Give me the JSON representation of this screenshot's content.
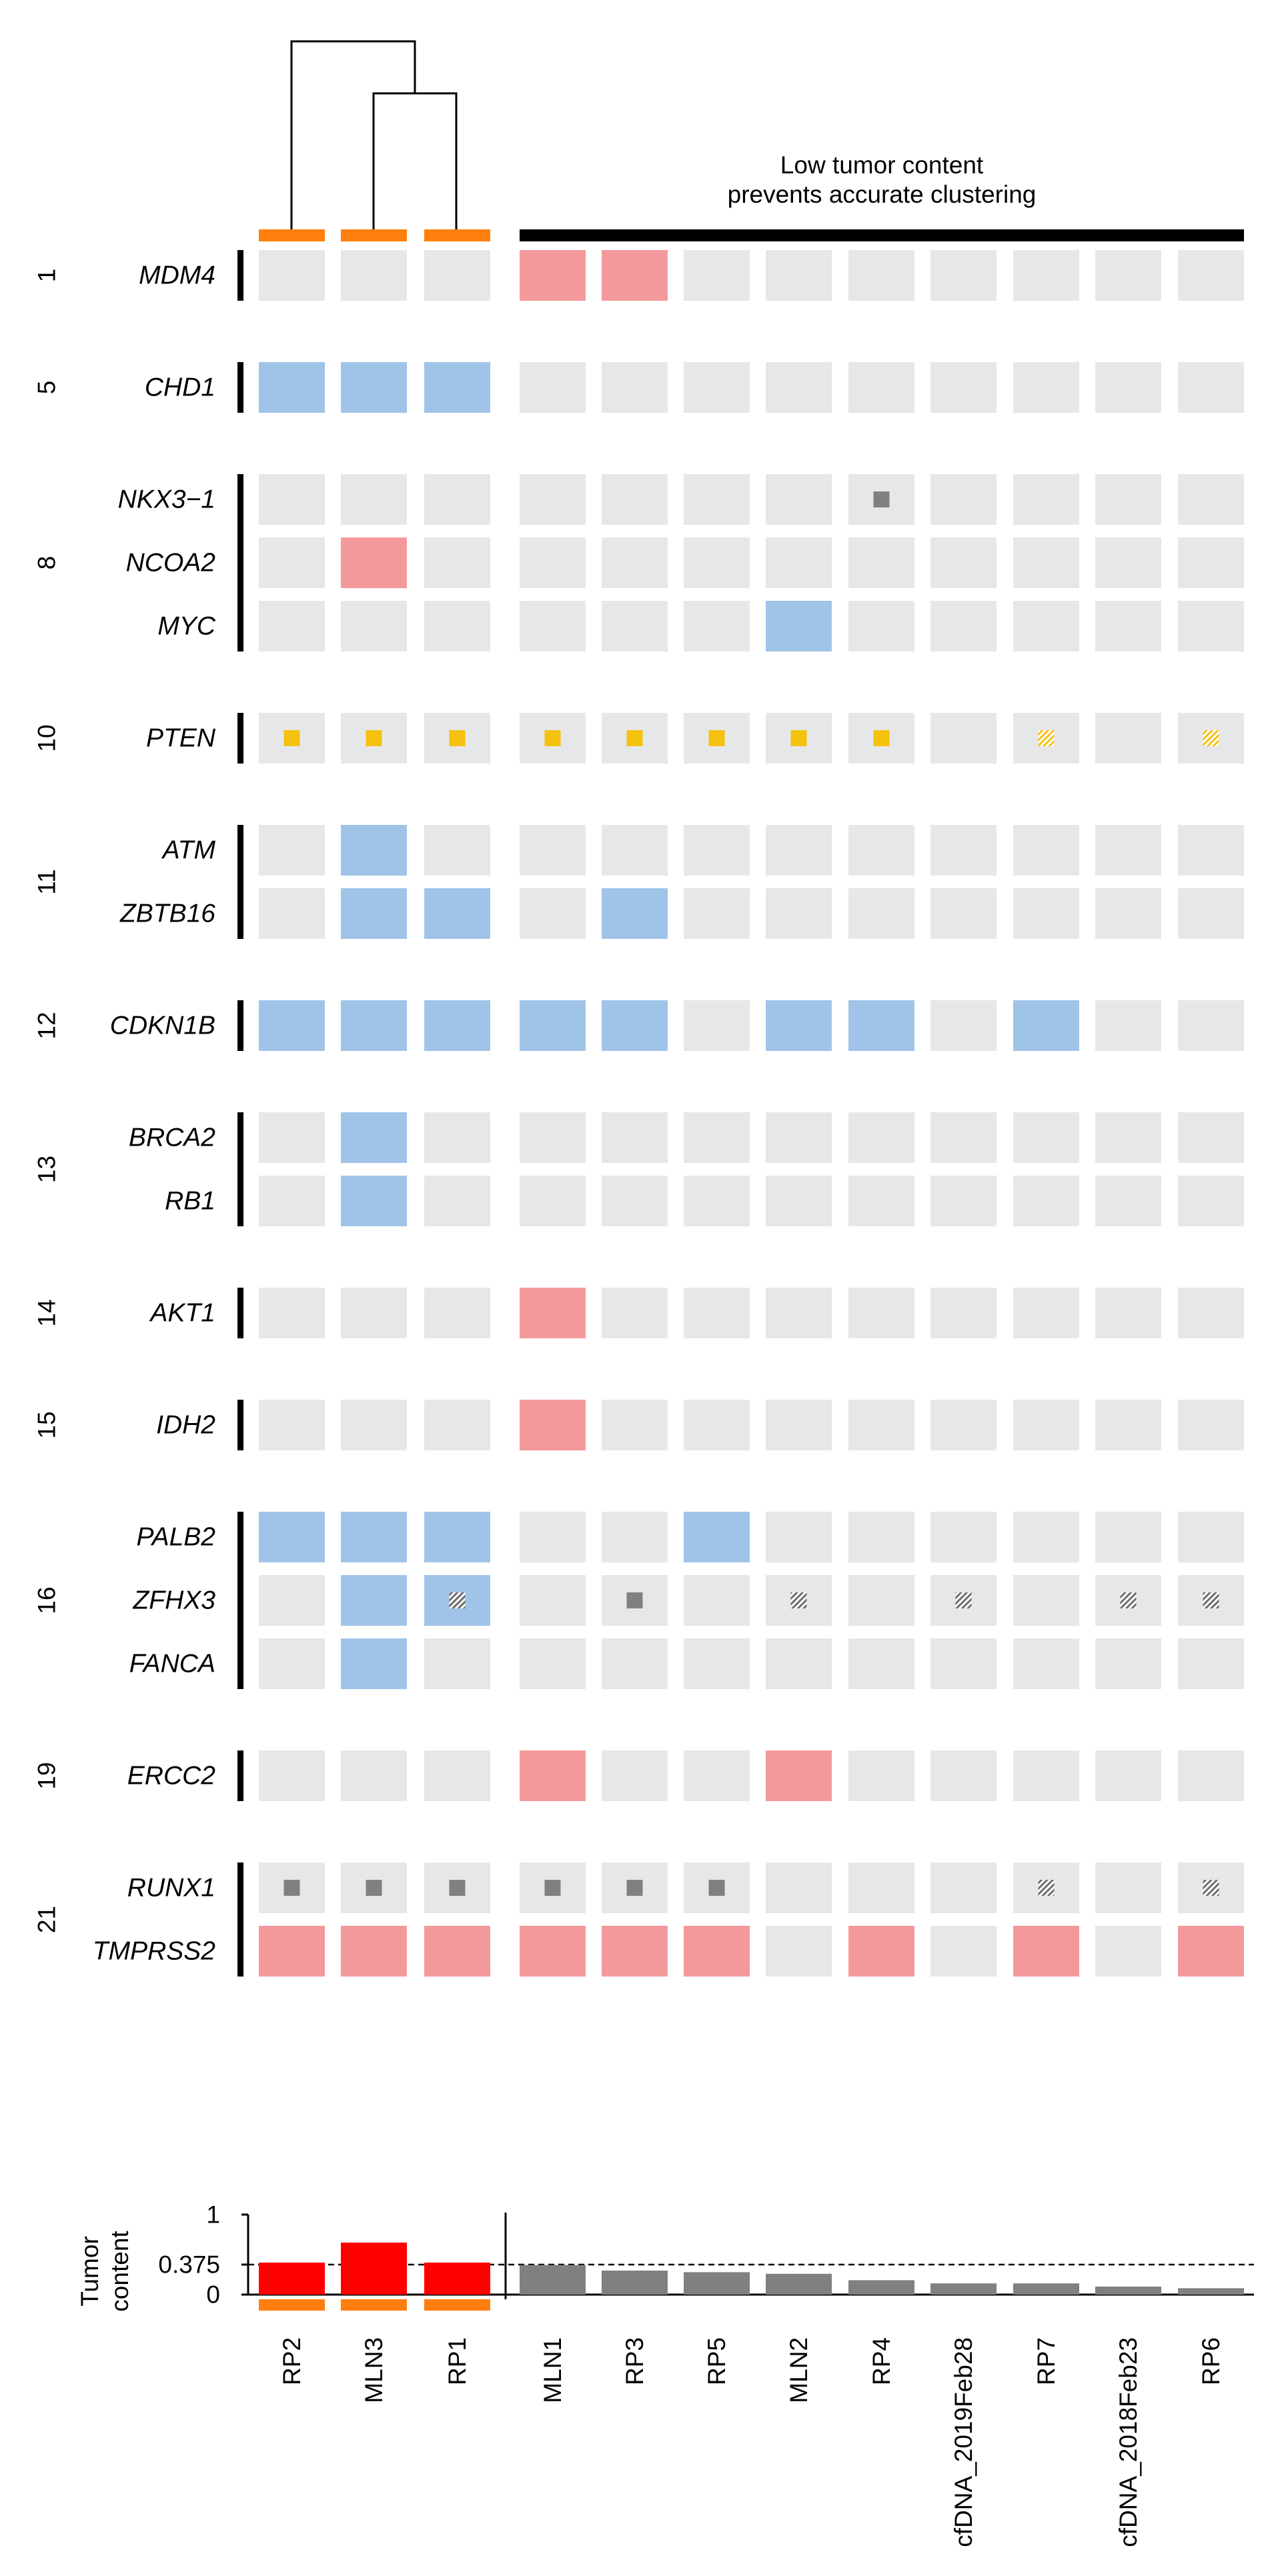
{
  "annotation": {
    "line1": "Low tumor content",
    "line2": "prevents accurate clustering"
  },
  "samples": [
    "RP2",
    "MLN3",
    "RP1",
    "MLN1",
    "RP3",
    "RP5",
    "MLN2",
    "RP4",
    "cfDNA_2019Feb28",
    "RP7",
    "cfDNA_2018Feb23",
    "RP6"
  ],
  "clustered_count": 3,
  "legend_codes": {
    "N": "neutral",
    "A": "amplification",
    "D": "deletion",
    "Y": "point mutation (yellow square)",
    "G": "point mutation (grey square)",
    "H": "hatched grey mark",
    "V": "hatched yellow mark",
    "B": "deletion with hatched grey mark"
  },
  "colors": {
    "neutral": "#e6e7e8",
    "amplification": "#f4999b",
    "deletion": "#a0c4e8",
    "mutation_yellow": "#f5c10f",
    "mutation_grey": "#808080",
    "cluster_bar": "#ff7f0e",
    "group_bar": "#000000",
    "bar_high": "#ff0000",
    "bar_low": "#808080"
  },
  "chromosome_groups": [
    {
      "chrom": "1",
      "genes": [
        {
          "symbol": "MDM4",
          "calls": "NNNAANNNNNNN"
        }
      ]
    },
    {
      "chrom": "5",
      "genes": [
        {
          "symbol": "CHD1",
          "calls": "DDDNNNNNNNNN"
        }
      ]
    },
    {
      "chrom": "8",
      "genes": [
        {
          "symbol": "NKX3−1",
          "calls": "NNNNNNNGNNNN"
        },
        {
          "symbol": "NCOA2",
          "calls": "NANNNNNNNNNN"
        },
        {
          "symbol": "MYC",
          "calls": "NNNNNNDNNNNN"
        }
      ]
    },
    {
      "chrom": "10",
      "genes": [
        {
          "symbol": "PTEN",
          "calls": "YYYYYYYYNVNV"
        }
      ]
    },
    {
      "chrom": "11",
      "genes": [
        {
          "symbol": "ATM",
          "calls": "NDNNNNNNNNNN"
        },
        {
          "symbol": "ZBTB16",
          "calls": "NDDNDNNNNNNN"
        }
      ]
    },
    {
      "chrom": "12",
      "genes": [
        {
          "symbol": "CDKN1B",
          "calls": "DDDDDNDDNDNN"
        }
      ]
    },
    {
      "chrom": "13",
      "genes": [
        {
          "symbol": "BRCA2",
          "calls": "NDNNNNNNNNNN"
        },
        {
          "symbol": "RB1",
          "calls": "NDNNNNNNNNNN"
        }
      ]
    },
    {
      "chrom": "14",
      "genes": [
        {
          "symbol": "AKT1",
          "calls": "NNNANNNNNNNN"
        }
      ]
    },
    {
      "chrom": "15",
      "genes": [
        {
          "symbol": "IDH2",
          "calls": "NNNANNNNNNNN"
        }
      ]
    },
    {
      "chrom": "16",
      "genes": [
        {
          "symbol": "PALB2",
          "calls": "DDDNNDNNNNNN"
        },
        {
          "symbol": "ZFHX3",
          "calls": "NDBNGNHNHNHH"
        },
        {
          "symbol": "FANCA",
          "calls": "NDNNNNNNNNNN"
        }
      ]
    },
    {
      "chrom": "19",
      "genes": [
        {
          "symbol": "ERCC2",
          "calls": "NNNANNANNNNN"
        }
      ]
    },
    {
      "chrom": "21",
      "genes": [
        {
          "symbol": "RUNX1",
          "calls": "GGGGGGNNNHNH"
        },
        {
          "symbol": "TMPRSS2",
          "calls": "AAAAAANANANA"
        }
      ]
    }
  ],
  "chart_data": {
    "type": "bar",
    "ylabel": "Tumor\ncontent",
    "ylim": [
      0,
      1
    ],
    "yticks": [
      "0",
      "0.375",
      "1"
    ],
    "threshold": 0.375,
    "threshold_label": "0.375",
    "categories": [
      "RP2",
      "MLN3",
      "RP1",
      "MLN1",
      "RP3",
      "RP5",
      "MLN2",
      "RP4",
      "cfDNA_2019Feb28",
      "RP7",
      "cfDNA_2018Feb23",
      "RP6"
    ],
    "values": [
      0.4,
      0.65,
      0.4,
      0.37,
      0.3,
      0.28,
      0.26,
      0.18,
      0.14,
      0.14,
      0.1,
      0.08
    ],
    "dendrogram": "((MLN3, RP1), RP2)",
    "grid": false
  }
}
